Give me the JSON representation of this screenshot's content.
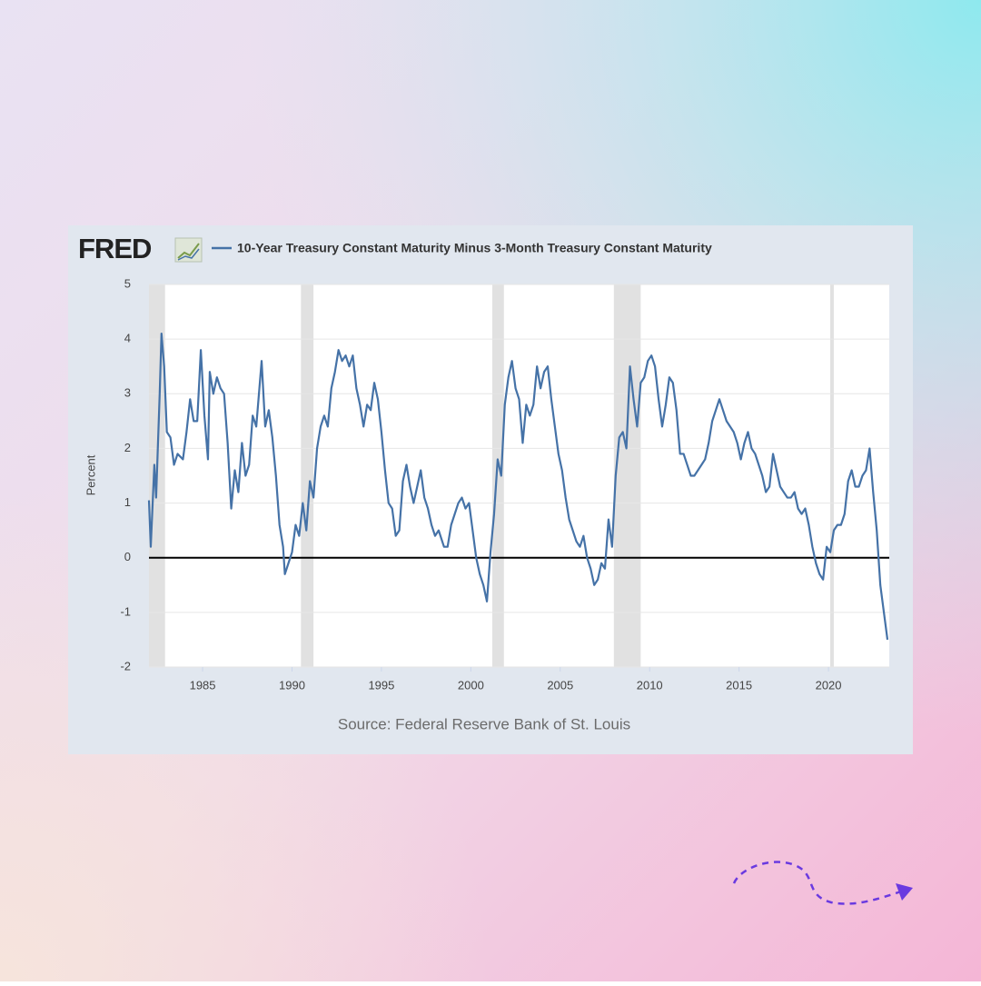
{
  "chart_data": {
    "type": "line",
    "logo": "FRED",
    "y_label": "Percent",
    "source": "Source: Federal Reserve Bank of St. Louis",
    "xlim": [
      1982,
      2023.4
    ],
    "ylim": [
      -2,
      5
    ],
    "xticks": [
      1985,
      1990,
      1995,
      2000,
      2005,
      2010,
      2015,
      2020
    ],
    "yticks": [
      -2,
      -1,
      0,
      1,
      2,
      3,
      4,
      5
    ],
    "grid": true,
    "recession_color": "#e1e1e1",
    "recessions": [
      [
        1981.5,
        1982.9
      ],
      [
        1990.5,
        1991.2
      ],
      [
        2001.2,
        2001.85
      ],
      [
        2008.0,
        2009.5
      ],
      [
        2020.1,
        2020.3
      ]
    ],
    "x": [
      1982.0,
      1982.1,
      1982.3,
      1982.4,
      1982.6,
      1982.7,
      1982.85,
      1983.0,
      1983.2,
      1983.4,
      1983.6,
      1983.9,
      1984.1,
      1984.3,
      1984.5,
      1984.7,
      1984.9,
      1985.1,
      1985.3,
      1985.4,
      1985.6,
      1985.8,
      1986.0,
      1986.2,
      1986.4,
      1986.6,
      1986.8,
      1987.0,
      1987.2,
      1987.4,
      1987.6,
      1987.8,
      1988.0,
      1988.3,
      1988.5,
      1988.7,
      1988.9,
      1989.1,
      1989.3,
      1989.5,
      1989.6,
      1989.8,
      1990.0,
      1990.2,
      1990.4,
      1990.6,
      1990.8,
      1991.0,
      1991.2,
      1991.4,
      1991.6,
      1991.8,
      1992.0,
      1992.2,
      1992.4,
      1992.6,
      1992.8,
      1993.0,
      1993.2,
      1993.4,
      1993.6,
      1993.8,
      1994.0,
      1994.2,
      1994.4,
      1994.6,
      1994.8,
      1995.0,
      1995.2,
      1995.4,
      1995.6,
      1995.8,
      1996.0,
      1996.2,
      1996.4,
      1996.6,
      1996.8,
      1997.0,
      1997.2,
      1997.4,
      1997.6,
      1997.8,
      1998.0,
      1998.2,
      1998.5,
      1998.7,
      1998.9,
      1999.1,
      1999.3,
      1999.5,
      1999.7,
      1999.9,
      2000.1,
      2000.3,
      2000.5,
      2000.7,
      2000.9,
      2001.1,
      2001.3,
      2001.5,
      2001.7,
      2001.9,
      2002.1,
      2002.3,
      2002.5,
      2002.7,
      2002.9,
      2003.1,
      2003.3,
      2003.5,
      2003.7,
      2003.9,
      2004.1,
      2004.3,
      2004.5,
      2004.7,
      2004.9,
      2005.1,
      2005.3,
      2005.5,
      2005.7,
      2005.9,
      2006.1,
      2006.3,
      2006.5,
      2006.7,
      2006.9,
      2007.1,
      2007.3,
      2007.5,
      2007.7,
      2007.9,
      2008.1,
      2008.3,
      2008.5,
      2008.7,
      2008.9,
      2009.1,
      2009.3,
      2009.5,
      2009.7,
      2009.9,
      2010.1,
      2010.3,
      2010.5,
      2010.7,
      2010.9,
      2011.1,
      2011.3,
      2011.5,
      2011.7,
      2011.9,
      2012.1,
      2012.3,
      2012.5,
      2012.7,
      2012.9,
      2013.1,
      2013.3,
      2013.5,
      2013.7,
      2013.9,
      2014.1,
      2014.3,
      2014.5,
      2014.7,
      2014.9,
      2015.1,
      2015.3,
      2015.5,
      2015.7,
      2015.9,
      2016.1,
      2016.3,
      2016.5,
      2016.7,
      2016.9,
      2017.1,
      2017.3,
      2017.5,
      2017.7,
      2017.9,
      2018.1,
      2018.3,
      2018.5,
      2018.7,
      2018.9,
      2019.1,
      2019.3,
      2019.5,
      2019.7,
      2019.9,
      2020.1,
      2020.3,
      2020.5,
      2020.7,
      2020.9,
      2021.1,
      2021.3,
      2021.5,
      2021.7,
      2021.9,
      2022.1,
      2022.3,
      2022.5,
      2022.7,
      2022.9,
      2023.1,
      2023.3
    ],
    "series": [
      {
        "name": "10-Year Treasury Constant Maturity Minus 3-Month Treasury Constant Maturity",
        "color": "#4572a7",
        "values": [
          1.05,
          0.2,
          1.7,
          1.1,
          3.0,
          4.1,
          3.5,
          2.3,
          2.2,
          1.7,
          1.9,
          1.8,
          2.3,
          2.9,
          2.5,
          2.5,
          3.8,
          2.6,
          1.8,
          3.4,
          3.0,
          3.3,
          3.1,
          3.0,
          2.1,
          0.9,
          1.6,
          1.2,
          2.1,
          1.5,
          1.7,
          2.6,
          2.4,
          3.6,
          2.4,
          2.7,
          2.2,
          1.5,
          0.6,
          0.2,
          -0.3,
          -0.1,
          0.1,
          0.6,
          0.4,
          1.0,
          0.5,
          1.4,
          1.1,
          2.0,
          2.4,
          2.6,
          2.4,
          3.1,
          3.4,
          3.8,
          3.6,
          3.7,
          3.5,
          3.7,
          3.1,
          2.8,
          2.4,
          2.8,
          2.7,
          3.2,
          2.9,
          2.3,
          1.6,
          1.0,
          0.9,
          0.4,
          0.5,
          1.4,
          1.7,
          1.3,
          1.0,
          1.3,
          1.6,
          1.1,
          0.9,
          0.6,
          0.4,
          0.5,
          0.2,
          0.2,
          0.6,
          0.8,
          1.0,
          1.1,
          0.9,
          1.0,
          0.5,
          0.0,
          -0.3,
          -0.5,
          -0.8,
          0.1,
          0.8,
          1.8,
          1.5,
          2.8,
          3.3,
          3.6,
          3.1,
          2.9,
          2.1,
          2.8,
          2.6,
          2.8,
          3.5,
          3.1,
          3.4,
          3.5,
          2.9,
          2.4,
          1.9,
          1.6,
          1.1,
          0.7,
          0.5,
          0.3,
          0.2,
          0.4,
          0.0,
          -0.2,
          -0.5,
          -0.4,
          -0.1,
          -0.2,
          0.7,
          0.2,
          1.5,
          2.2,
          2.3,
          2.0,
          3.5,
          2.9,
          2.4,
          3.2,
          3.3,
          3.6,
          3.7,
          3.5,
          2.9,
          2.4,
          2.8,
          3.3,
          3.2,
          2.7,
          1.9,
          1.9,
          1.7,
          1.5,
          1.5,
          1.6,
          1.7,
          1.8,
          2.1,
          2.5,
          2.7,
          2.9,
          2.7,
          2.5,
          2.4,
          2.3,
          2.1,
          1.8,
          2.1,
          2.3,
          2.0,
          1.9,
          1.7,
          1.5,
          1.2,
          1.3,
          1.9,
          1.6,
          1.3,
          1.2,
          1.1,
          1.1,
          1.2,
          0.9,
          0.8,
          0.9,
          0.6,
          0.2,
          -0.1,
          -0.3,
          -0.4,
          0.2,
          0.1,
          0.5,
          0.6,
          0.6,
          0.8,
          1.4,
          1.6,
          1.3,
          1.3,
          1.5,
          1.6,
          2.0,
          1.2,
          0.5,
          -0.5,
          -1.0,
          -1.5
        ]
      }
    ]
  }
}
